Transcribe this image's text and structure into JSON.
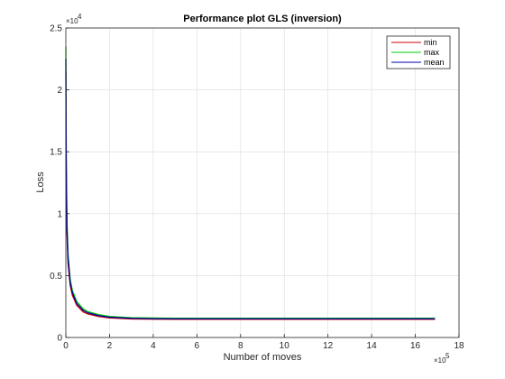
{
  "chart_data": {
    "type": "line",
    "title": "Performance plot GLS (inversion)",
    "xlabel": "Number of moves",
    "ylabel": "Loss",
    "x_exponent_label": "×10",
    "x_exponent": "5",
    "y_exponent_label": "×10",
    "y_exponent": "4",
    "xlim": [
      0,
      18
    ],
    "ylim": [
      0,
      2.5
    ],
    "x_ticks": [
      "0",
      "2",
      "4",
      "6",
      "8",
      "10",
      "12",
      "14",
      "16",
      "18"
    ],
    "y_ticks": [
      "0",
      "0.5",
      "1",
      "1.5",
      "2",
      "2.5"
    ],
    "grid": true,
    "legend_position": "top-right",
    "x": [
      0,
      0.02,
      0.05,
      0.1,
      0.2,
      0.3,
      0.5,
      0.8,
      1.0,
      1.5,
      2.0,
      3.0,
      4.0,
      5.0,
      6.0,
      8.0,
      10.0,
      12.0,
      14.0,
      16.0,
      16.9
    ],
    "series": [
      {
        "name": "min",
        "color": "#cc0000",
        "values": [
          2.15,
          1.3,
          0.85,
          0.6,
          0.42,
          0.34,
          0.26,
          0.205,
          0.19,
          0.17,
          0.158,
          0.15,
          0.148,
          0.147,
          0.147,
          0.147,
          0.147,
          0.147,
          0.147,
          0.147,
          0.147
        ]
      },
      {
        "name": "max",
        "color": "#00cc00",
        "values": [
          2.35,
          1.45,
          0.95,
          0.68,
          0.47,
          0.38,
          0.29,
          0.23,
          0.21,
          0.185,
          0.17,
          0.16,
          0.157,
          0.156,
          0.156,
          0.156,
          0.156,
          0.156,
          0.156,
          0.156,
          0.156
        ]
      },
      {
        "name": "mean",
        "color": "#0000aa",
        "values": [
          2.25,
          1.38,
          0.9,
          0.64,
          0.445,
          0.36,
          0.275,
          0.218,
          0.2,
          0.177,
          0.164,
          0.155,
          0.152,
          0.151,
          0.151,
          0.151,
          0.151,
          0.151,
          0.151,
          0.151,
          0.151
        ]
      }
    ]
  }
}
